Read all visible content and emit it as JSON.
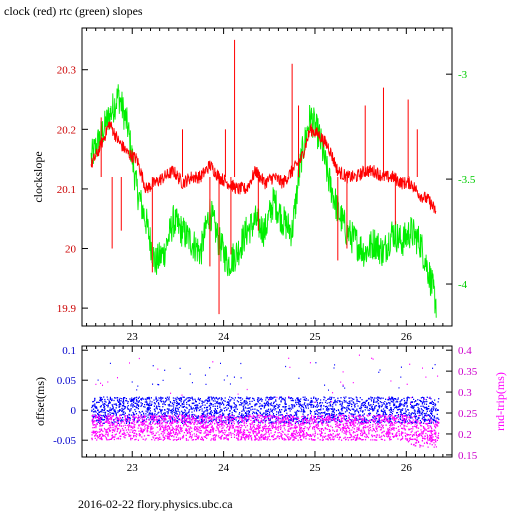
{
  "title": "clock (red) rtc (green) slopes",
  "footer": "2016-02-22 flory.physics.ubc.ca",
  "colors": {
    "red": "#ff0000",
    "green": "#00ee00",
    "blue": "#0000ff",
    "magenta": "#ff00ff",
    "axis": "#000000",
    "left_top_ticks": "#cc0000",
    "right_top_ticks": "#00cc00",
    "left_bottom_ticks": "#0000cc",
    "right_bottom_ticks": "#cc00cc"
  },
  "chart_data": [
    {
      "type": "line",
      "ylabel": "clockslope",
      "y2label": "",
      "xlim": [
        22.45,
        26.5
      ],
      "ylim": [
        19.87,
        20.37
      ],
      "y2lim": [
        -4.2,
        -2.78
      ],
      "xticks": [
        23,
        24,
        25,
        26
      ],
      "xtick_labels": [
        "23",
        "24",
        "25",
        "26"
      ],
      "yticks": [
        19.9,
        20.0,
        20.1,
        20.2,
        20.3
      ],
      "ytick_labels": [
        "19.9",
        "20",
        "20.1",
        "20.2",
        "20.3"
      ],
      "y2ticks": [
        -4.0,
        -3.5,
        -3.0
      ],
      "y2tick_labels": [
        "-4",
        "-3.5",
        "-3"
      ],
      "grid": false,
      "series": [
        {
          "axis": "left",
          "color": "#ff0000",
          "x": [
            22.55,
            22.65,
            22.75,
            22.85,
            22.95,
            23.05,
            23.15,
            23.25,
            23.35,
            23.45,
            23.55,
            23.65,
            23.75,
            23.85,
            23.95,
            24.05,
            24.15,
            24.25,
            24.35,
            24.45,
            24.55,
            24.65,
            24.75,
            24.85,
            24.95,
            25.05,
            25.15,
            25.25,
            25.35,
            25.45,
            25.55,
            25.65,
            25.75,
            25.85,
            25.95,
            26.05,
            26.15,
            26.25,
            26.33
          ],
          "y": [
            20.14,
            20.17,
            20.21,
            20.18,
            20.16,
            20.15,
            20.1,
            20.11,
            20.12,
            20.13,
            20.11,
            20.12,
            20.12,
            20.14,
            20.12,
            20.11,
            20.1,
            20.1,
            20.13,
            20.11,
            20.12,
            20.11,
            20.13,
            20.15,
            20.2,
            20.19,
            20.17,
            20.13,
            20.12,
            20.12,
            20.13,
            20.13,
            20.12,
            20.12,
            20.11,
            20.11,
            20.09,
            20.08,
            20.06
          ]
        },
        {
          "axis": "right",
          "color": "#00ee00",
          "x": [
            22.55,
            22.65,
            22.75,
            22.85,
            22.95,
            23.05,
            23.15,
            23.25,
            23.35,
            23.45,
            23.55,
            23.65,
            23.75,
            23.85,
            23.95,
            24.05,
            24.15,
            24.25,
            24.35,
            24.45,
            24.55,
            24.65,
            24.75,
            24.85,
            24.95,
            25.05,
            25.15,
            25.25,
            25.35,
            25.45,
            25.55,
            25.65,
            25.75,
            25.85,
            25.95,
            26.05,
            26.15,
            26.25,
            26.33
          ],
          "y": [
            -3.4,
            -3.3,
            -3.2,
            -3.1,
            -3.25,
            -3.55,
            -3.7,
            -3.9,
            -3.85,
            -3.7,
            -3.75,
            -3.8,
            -3.85,
            -3.65,
            -3.8,
            -3.9,
            -3.85,
            -3.75,
            -3.7,
            -3.75,
            -3.6,
            -3.7,
            -3.75,
            -3.4,
            -3.2,
            -3.3,
            -3.5,
            -3.65,
            -3.75,
            -3.8,
            -3.85,
            -3.8,
            -3.85,
            -3.75,
            -3.8,
            -3.75,
            -3.8,
            -3.95,
            -4.1
          ]
        }
      ],
      "spikes_left": [
        {
          "x": 22.66,
          "y": 20.22
        },
        {
          "x": 22.78,
          "y": 20.0
        },
        {
          "x": 22.88,
          "y": 20.03
        },
        {
          "x": 23.22,
          "y": 19.96
        },
        {
          "x": 23.55,
          "y": 20.2
        },
        {
          "x": 23.85,
          "y": 19.97
        },
        {
          "x": 23.95,
          "y": 19.89
        },
        {
          "x": 24.02,
          "y": 20.2
        },
        {
          "x": 24.08,
          "y": 19.99
        },
        {
          "x": 24.12,
          "y": 20.35
        },
        {
          "x": 24.38,
          "y": 20.03
        },
        {
          "x": 24.75,
          "y": 20.31
        },
        {
          "x": 24.82,
          "y": 20.24
        },
        {
          "x": 25.25,
          "y": 19.98
        },
        {
          "x": 25.35,
          "y": 20.0
        },
        {
          "x": 25.55,
          "y": 20.24
        },
        {
          "x": 25.75,
          "y": 20.27
        },
        {
          "x": 25.88,
          "y": 20.04
        },
        {
          "x": 26.02,
          "y": 20.25
        },
        {
          "x": 26.12,
          "y": 20.2
        }
      ]
    },
    {
      "type": "scatter",
      "ylabel": "offset(ms)",
      "y2label": "rnd-trip(ms)",
      "xlim": [
        22.45,
        26.5
      ],
      "ylim": [
        -0.078,
        0.107
      ],
      "y2lim": [
        0.145,
        0.41
      ],
      "xticks": [
        23,
        24,
        25,
        26
      ],
      "xtick_labels": [
        "23",
        "24",
        "25",
        "26"
      ],
      "yticks": [
        -0.05,
        0,
        0.05,
        0.1
      ],
      "ytick_labels": [
        "-0.05",
        "0",
        "0.05",
        "0.1"
      ],
      "y2ticks": [
        0.15,
        0.2,
        0.25,
        0.3,
        0.35,
        0.4
      ],
      "y2tick_labels": [
        "0.15",
        "0.2",
        "0.25",
        "0.3",
        "0.35",
        "0.4"
      ],
      "grid": false,
      "series": [
        {
          "axis": "left",
          "color": "#0000ff",
          "x_range": [
            22.55,
            26.35
          ],
          "center": 0.0,
          "band": 0.022
        },
        {
          "axis": "right",
          "color": "#ff00ff",
          "x_range": [
            22.55,
            26.35
          ],
          "center": 0.215,
          "band": 0.03
        }
      ]
    }
  ]
}
